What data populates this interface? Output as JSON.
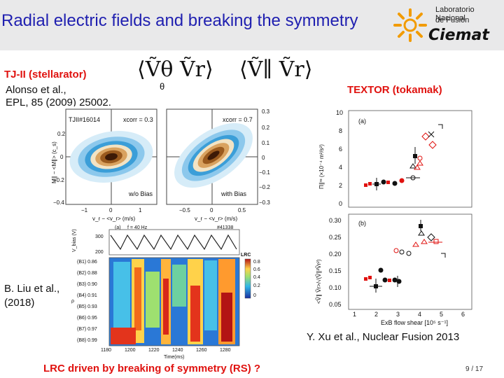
{
  "slide": {
    "title": "Radial electric fields and breaking the symmetry",
    "logo": {
      "line1": "Laboratorio Nacional",
      "line2": "de Fusión",
      "brand": "Ciemat"
    },
    "left_heading": "TJ-II (stellarator)",
    "left_ref_1": "Alonso et al.,",
    "left_ref_2": "EPL, 85 (2009) 25002.",
    "formula_1": "⟨Ṽθ Ṽr⟩",
    "theta_label": "θ",
    "formula_2": "⟨Ṽ∥ Ṽr⟩",
    "right_heading": "TEXTOR (tokamak)",
    "ref_liu_1": "B. Liu et al.,",
    "ref_liu_2": "(2018)",
    "ref_xu": "Y. Xu et al., Nuclear Fusion 2013",
    "bottom_text": "LRC driven by breaking of symmetry (RS) ?",
    "page_number": "9 / 17"
  },
  "fig_tj2": {
    "shot": "TJII#16014",
    "xcorr_left": "xcorr = 0.3",
    "xcorr_right": "xcorr = 0.7",
    "label_left": "w/o Bias",
    "label_right": "with Bias",
    "ylabel": "M∥ − <M∥> (c_s)",
    "xlabel_left": "v_r − <v_r> (m/s)",
    "xlabel_right": "v_r − <v_r> (m/s)",
    "ticks_y_right": [
      "0.3",
      "0.2",
      "0.1",
      "0",
      "−0.1",
      "−0.2",
      "−0.3"
    ],
    "ticks_y_left": [
      "0.4",
      "0.2",
      "0",
      "−0.2",
      "−0.4"
    ],
    "ticks_x_left": [
      "−1",
      "0",
      "1"
    ],
    "ticks_x_right": [
      "−0.5",
      "0",
      "0.5"
    ]
  },
  "fig_lrc": {
    "panel": "(a)",
    "freq": "f = 40 Hz",
    "shot": "#41338",
    "ylabel_top": "V_bias (V)",
    "yticks_top": [
      "300",
      "200"
    ],
    "colorbar_label": "LRC",
    "colorbar_ticks": [
      "0.8",
      "0.6",
      "0.4",
      "0.2",
      "0"
    ],
    "rows": [
      "(B1) 0.86",
      "(B2) 0.88",
      "(B3) 0.90",
      "(B4) 0.91",
      "(B5) 0.93",
      "(B6) 0.95",
      "(B7) 0.97",
      "(B8) 0.99"
    ],
    "ylabel": "ρ",
    "xticks": [
      "1180",
      "1200",
      "1220",
      "1240",
      "1260",
      "1280"
    ],
    "xlabel": "Time(ms)"
  },
  "fig_textor": {
    "panel_a": "(a)",
    "panel_b": "(b)",
    "ylabel_a": "Π∥ʳᵉ (×10⁻⁴ m²/s²)",
    "ylabel_b": "<Ṽ∥ Ṽr>/√(Ṽ∥²Ṽr²)",
    "yticks_a": [
      "10",
      "8",
      "6",
      "4",
      "2",
      "0"
    ],
    "yticks_b": [
      "0.30",
      "0.25",
      "0.20",
      "0.15",
      "0.10",
      "0.05"
    ],
    "xticks": [
      "1",
      "2",
      "3",
      "4",
      "5",
      "6"
    ],
    "xlabel": "ExB flow shear [10⁵ s⁻¹]"
  },
  "colors": {
    "title": "#1f1fb0",
    "accent_red": "#e0120f",
    "header_bg": "#e9e9ea"
  }
}
